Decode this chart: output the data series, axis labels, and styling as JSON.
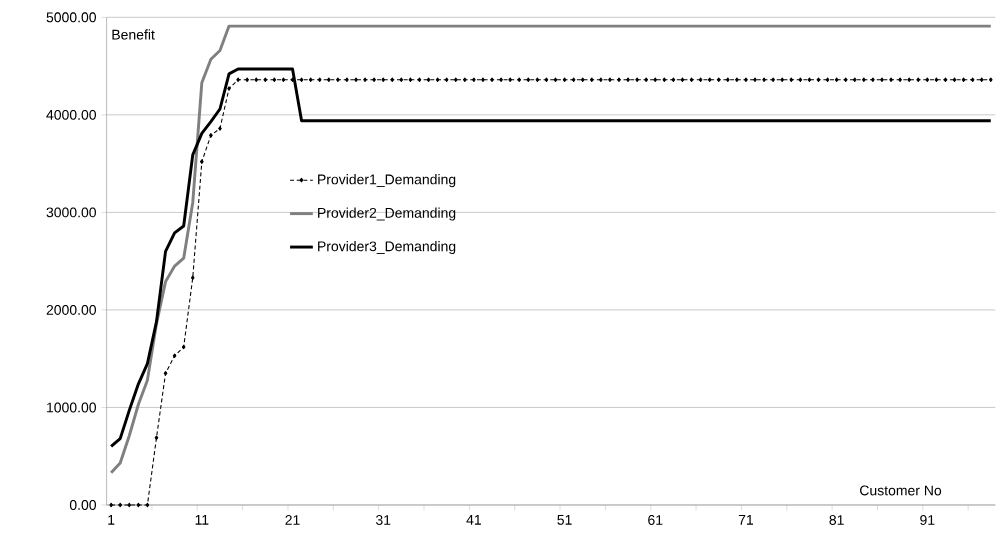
{
  "chart_data": {
    "type": "line",
    "xlabel": "Customer No",
    "ylabel": "Benefit",
    "categories": [
      "1",
      null,
      null,
      null,
      null,
      null,
      null,
      null,
      null,
      null,
      "11",
      null,
      null,
      null,
      null,
      null,
      null,
      null,
      null,
      null,
      "21",
      null,
      null,
      null,
      null,
      null,
      null,
      null,
      null,
      null,
      "31",
      null,
      null,
      null,
      null,
      null,
      null,
      null,
      null,
      null,
      "41",
      null,
      null,
      null,
      null,
      null,
      null,
      null,
      null,
      null,
      "51",
      null,
      null,
      null,
      null,
      null,
      null,
      null,
      null,
      null,
      "61",
      null,
      null,
      null,
      null,
      null,
      null,
      null,
      null,
      null,
      "71",
      null,
      null,
      null,
      null,
      null,
      null,
      null,
      null,
      null,
      "81",
      null,
      null,
      null,
      null,
      null,
      null,
      null,
      null,
      null,
      "91",
      null,
      null,
      null,
      null,
      null,
      null,
      null
    ],
    "ylim": [
      0,
      5000
    ],
    "yticks": [
      {
        "value": 0,
        "label": "0.00"
      },
      {
        "value": 1000,
        "label": "1000.00"
      },
      {
        "value": 2000,
        "label": "2000.00"
      },
      {
        "value": 3000,
        "label": "3000.00"
      },
      {
        "value": 4000,
        "label": "4000.00"
      },
      {
        "value": 5000,
        "label": "5000.00"
      }
    ],
    "grid": "y",
    "legend": "center",
    "series": [
      {
        "name": "Provider1_Demanding",
        "color": "#000000",
        "line_style": "dashed",
        "marker": "diamond",
        "values": [
          0,
          0,
          0,
          0,
          0,
          690,
          1350,
          1530,
          1620,
          2330,
          3520,
          3790,
          3860,
          4270,
          4360,
          4360,
          4360,
          4360,
          4360,
          4360,
          4360,
          4360,
          4360,
          4360,
          4360,
          4360,
          4360,
          4360,
          4360,
          4360,
          4360,
          4360,
          4360,
          4360,
          4360,
          4360,
          4360,
          4360,
          4360,
          4360,
          4360,
          4360,
          4360,
          4360,
          4360,
          4360,
          4360,
          4360,
          4360,
          4360,
          4360,
          4360,
          4360,
          4360,
          4360,
          4360,
          4360,
          4360,
          4360,
          4360,
          4360,
          4360,
          4360,
          4360,
          4360,
          4360,
          4360,
          4360,
          4360,
          4360,
          4360,
          4360,
          4360,
          4360,
          4360,
          4360,
          4360,
          4360,
          4360,
          4360,
          4360,
          4360,
          4360,
          4360,
          4360,
          4360,
          4360,
          4360,
          4360,
          4360,
          4360,
          4360,
          4360,
          4360,
          4360,
          4360,
          4360,
          4360
        ]
      },
      {
        "name": "Provider2_Demanding",
        "color": "#808080",
        "line_style": "solid",
        "values": [
          330,
          430,
          710,
          1030,
          1280,
          1860,
          2290,
          2450,
          2530,
          3100,
          4330,
          4570,
          4660,
          4910,
          4910,
          4910,
          4910,
          4910,
          4910,
          4910,
          4910,
          4910,
          4910,
          4910,
          4910,
          4910,
          4910,
          4910,
          4910,
          4910,
          4910,
          4910,
          4910,
          4910,
          4910,
          4910,
          4910,
          4910,
          4910,
          4910,
          4910,
          4910,
          4910,
          4910,
          4910,
          4910,
          4910,
          4910,
          4910,
          4910,
          4910,
          4910,
          4910,
          4910,
          4910,
          4910,
          4910,
          4910,
          4910,
          4910,
          4910,
          4910,
          4910,
          4910,
          4910,
          4910,
          4910,
          4910,
          4910,
          4910,
          4910,
          4910,
          4910,
          4910,
          4910,
          4910,
          4910,
          4910,
          4910,
          4910,
          4910,
          4910,
          4910,
          4910,
          4910,
          4910,
          4910,
          4910,
          4910,
          4910,
          4910,
          4910,
          4910,
          4910,
          4910,
          4910,
          4910,
          4910
        ]
      },
      {
        "name": "Provider3_Demanding",
        "color": "#000000",
        "line_style": "solid",
        "values": [
          600,
          680,
          970,
          1240,
          1450,
          1880,
          2600,
          2790,
          2860,
          3590,
          3810,
          3930,
          4060,
          4420,
          4470,
          4470,
          4470,
          4470,
          4470,
          4470,
          4470,
          3940,
          3940,
          3940,
          3940,
          3940,
          3940,
          3940,
          3940,
          3940,
          3940,
          3940,
          3940,
          3940,
          3940,
          3940,
          3940,
          3940,
          3940,
          3940,
          3940,
          3940,
          3940,
          3940,
          3940,
          3940,
          3940,
          3940,
          3940,
          3940,
          3940,
          3940,
          3940,
          3940,
          3940,
          3940,
          3940,
          3940,
          3940,
          3940,
          3940,
          3940,
          3940,
          3940,
          3940,
          3940,
          3940,
          3940,
          3940,
          3940,
          3940,
          3940,
          3940,
          3940,
          3940,
          3940,
          3940,
          3940,
          3940,
          3940,
          3940,
          3940,
          3940,
          3940,
          3940,
          3940,
          3940,
          3940,
          3940,
          3940,
          3940,
          3940,
          3940,
          3940,
          3940,
          3940,
          3940,
          3940
        ]
      }
    ]
  }
}
